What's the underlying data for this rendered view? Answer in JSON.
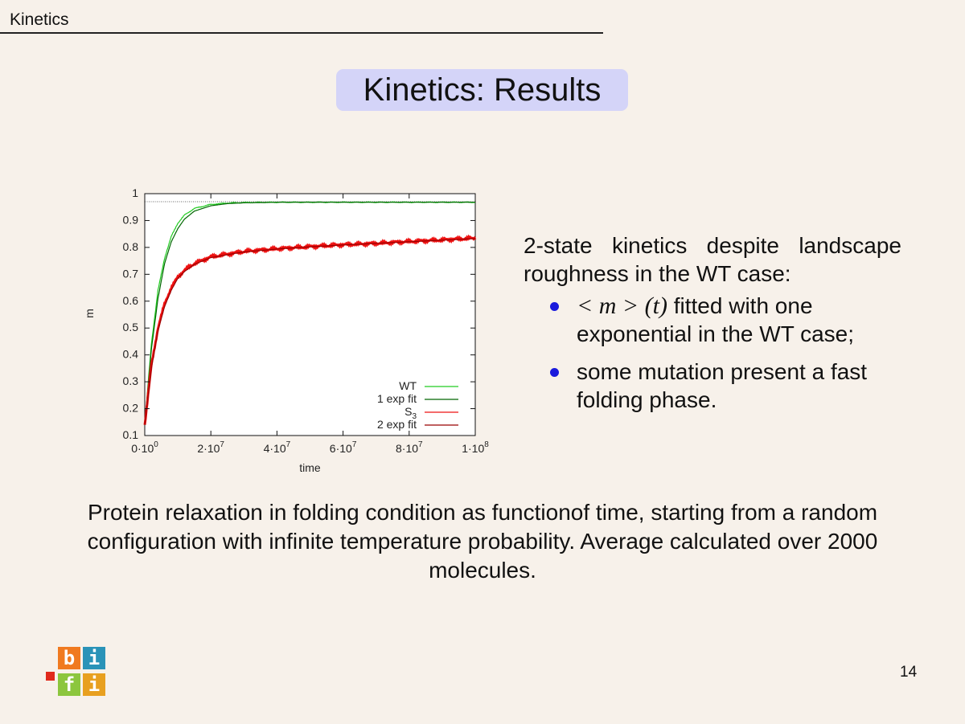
{
  "header": {
    "section": "Kinetics"
  },
  "slide": {
    "title": "Kinetics: Results",
    "intro": [
      "2-state kinetics despite landscape",
      "roughness in the WT case:"
    ],
    "bullets": [
      {
        "math": "< m > (t)",
        "text": " fitted with one exponential in the WT case;"
      },
      {
        "text": "some mutation present a fast folding phase."
      }
    ],
    "caption": "Protein relaxation in folding condition as functionof time, starting from a random configuration with infinite temperature probability. Average calculated over 2000 molecules.",
    "page_number": "14"
  },
  "logo": {
    "letters": [
      "b",
      "i",
      "f",
      "i"
    ],
    "colors": [
      "#f07a20",
      "#2a93b8",
      "#8cc63e",
      "#e8a020"
    ],
    "accent": "#e02a1c"
  },
  "chart_data": {
    "type": "line",
    "xlabel": "time",
    "ylabel": "m",
    "xlim": [
      0,
      100000000
    ],
    "ylim": [
      0.1,
      1
    ],
    "xticks": [
      {
        "value": 0,
        "mant": "0",
        "exp": "0"
      },
      {
        "value": 20000000,
        "mant": "2",
        "exp": "7"
      },
      {
        "value": 40000000,
        "mant": "4",
        "exp": "7"
      },
      {
        "value": 60000000,
        "mant": "6",
        "exp": "7"
      },
      {
        "value": 80000000,
        "mant": "8",
        "exp": "7"
      },
      {
        "value": 100000000,
        "mant": "1",
        "exp": "8"
      }
    ],
    "yticks": [
      "0.1",
      "0.2",
      "0.3",
      "0.4",
      "0.5",
      "0.6",
      "0.7",
      "0.8",
      "0.9",
      "1"
    ],
    "reference_line": 0.97,
    "legend_position": "bottom-right",
    "series": [
      {
        "name": "WT",
        "color": "#22cc22",
        "x": [
          0,
          2000000,
          4000000,
          6000000,
          8000000,
          10000000,
          12000000,
          15000000,
          20000000,
          25000000,
          30000000,
          40000000,
          60000000,
          80000000,
          100000000
        ],
        "y": [
          0.14,
          0.44,
          0.64,
          0.76,
          0.84,
          0.89,
          0.92,
          0.945,
          0.96,
          0.965,
          0.967,
          0.968,
          0.968,
          0.968,
          0.968
        ]
      },
      {
        "name": "1 exp fit",
        "color": "#006600",
        "x": [
          0,
          2000000,
          4000000,
          6000000,
          8000000,
          10000000,
          12000000,
          15000000,
          20000000,
          25000000,
          30000000,
          40000000,
          60000000,
          80000000,
          100000000
        ],
        "y": [
          0.14,
          0.42,
          0.61,
          0.74,
          0.82,
          0.87,
          0.905,
          0.935,
          0.955,
          0.963,
          0.966,
          0.968,
          0.968,
          0.968,
          0.968
        ]
      },
      {
        "name": "S",
        "sub": "3",
        "color": "#ee1111",
        "x": [
          0,
          2000000,
          4000000,
          6000000,
          8000000,
          10000000,
          12000000,
          15000000,
          20000000,
          25000000,
          30000000,
          40000000,
          50000000,
          60000000,
          70000000,
          80000000,
          90000000,
          100000000
        ],
        "y": [
          0.14,
          0.36,
          0.5,
          0.59,
          0.65,
          0.69,
          0.715,
          0.74,
          0.765,
          0.775,
          0.785,
          0.795,
          0.803,
          0.81,
          0.815,
          0.822,
          0.828,
          0.835
        ]
      },
      {
        "name": "2 exp fit",
        "color": "#990000",
        "x": [
          0,
          2000000,
          4000000,
          6000000,
          8000000,
          10000000,
          12000000,
          15000000,
          20000000,
          25000000,
          30000000,
          40000000,
          50000000,
          60000000,
          70000000,
          80000000,
          90000000,
          100000000
        ],
        "y": [
          0.14,
          0.35,
          0.49,
          0.58,
          0.64,
          0.685,
          0.71,
          0.737,
          0.762,
          0.773,
          0.783,
          0.794,
          0.802,
          0.809,
          0.815,
          0.821,
          0.827,
          0.833
        ]
      }
    ]
  }
}
